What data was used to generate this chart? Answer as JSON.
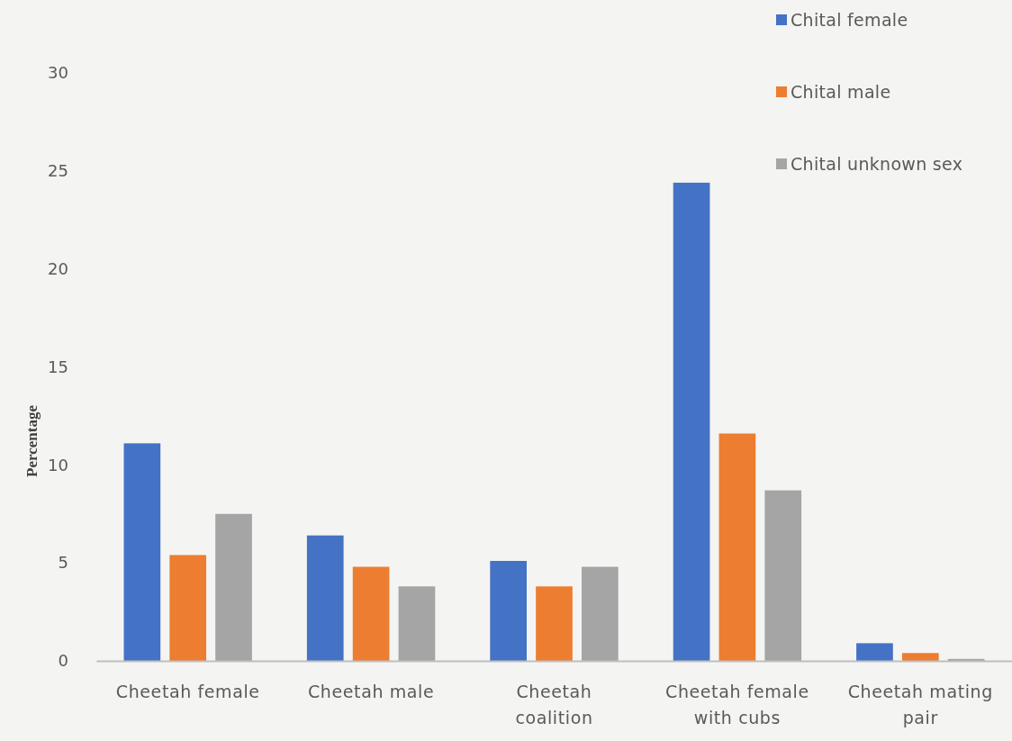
{
  "chart_data": {
    "type": "bar",
    "ylabel": "Percentage",
    "categories": [
      "Cheetah female",
      "Cheetah male",
      "Cheetah coalition",
      "Cheetah female with cubs",
      "Cheetah mating pair"
    ],
    "series": [
      {
        "name": "Chital female",
        "color": "#4472c4",
        "values": [
          11.1,
          6.4,
          5.1,
          24.4,
          0.9
        ]
      },
      {
        "name": "Chital male",
        "color": "#ed7d31",
        "values": [
          5.4,
          4.8,
          3.8,
          11.6,
          0.4
        ]
      },
      {
        "name": "Chital unknown sex",
        "color": "#a5a5a5",
        "values": [
          7.5,
          3.8,
          4.8,
          8.7,
          0.1
        ]
      }
    ],
    "ylim": [
      0,
      30
    ],
    "yticks": [
      0,
      5,
      10,
      15,
      20,
      25,
      30
    ],
    "grid": false,
    "legend": "top right"
  }
}
